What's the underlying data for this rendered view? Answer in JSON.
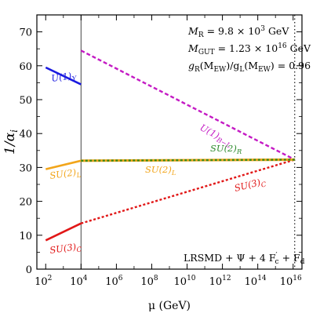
{
  "chart_data": {
    "type": "line",
    "xlabel": "μ (GeV)",
    "ylabel": "1/α",
    "ylabel_sub": "i",
    "x_scale": "log10",
    "xlim_exp": [
      1.5,
      16.5
    ],
    "ylim": [
      0,
      75
    ],
    "x_ticks": [
      {
        "exp": 2,
        "base": "10",
        "sup": "2"
      },
      {
        "exp": 4,
        "base": "10",
        "sup": "4"
      },
      {
        "exp": 6,
        "base": "10",
        "sup": "6"
      },
      {
        "exp": 8,
        "base": "10",
        "sup": "8"
      },
      {
        "exp": 10,
        "base": "10",
        "sup": "10"
      },
      {
        "exp": 12,
        "base": "10",
        "sup": "12"
      },
      {
        "exp": 14,
        "base": "10",
        "sup": "14"
      },
      {
        "exp": 16,
        "base": "10",
        "sup": "16"
      }
    ],
    "y_ticks": [
      0,
      10,
      20,
      30,
      40,
      50,
      60,
      70
    ],
    "vlines": [
      {
        "x_exp": 4,
        "style": "solid",
        "color": "#555555"
      },
      {
        "x_exp": 16.09,
        "style": "dotted",
        "color": "#000000"
      }
    ],
    "series": [
      {
        "name": "U(1)Y",
        "color": "#1a1ae0",
        "dash": "solid",
        "points": [
          [
            2,
            59.5
          ],
          [
            4,
            54.5
          ]
        ],
        "label": {
          "text": "U(1)",
          "sub": "Y",
          "color": "#1a1ae0"
        }
      },
      {
        "name": "SU(2)L",
        "color": "#f2a51a",
        "dash": "solid",
        "points": [
          [
            2,
            29.5
          ],
          [
            4,
            32
          ]
        ],
        "label": {
          "text": "SU(2)",
          "sub": "L",
          "color": "#f2a51a"
        }
      },
      {
        "name": "SU(3)C",
        "color": "#e11717",
        "dash": "solid",
        "points": [
          [
            2,
            8.5
          ],
          [
            4,
            13.5
          ]
        ],
        "label": {
          "text": "SU(3)",
          "sub": "C",
          "color": "#e11717"
        }
      },
      {
        "name": "U(1)B-L",
        "color": "#c41ac4",
        "dash": "dashed",
        "points": [
          [
            4,
            64.5
          ],
          [
            16.09,
            32.3
          ]
        ],
        "label": {
          "text": "U(1)",
          "sub": "B−L",
          "color": "#c41ac4"
        }
      },
      {
        "name": "SU(3)C high",
        "color": "#e11717",
        "dash": "dotted",
        "points": [
          [
            4,
            13.5
          ],
          [
            16.09,
            32.3
          ]
        ],
        "label": {
          "text": "SU(3)",
          "sub": "C",
          "color": "#e11717"
        }
      },
      {
        "name": "SU(2)L high",
        "color": "#f2a51a",
        "dash": "dotted",
        "points": [
          [
            4,
            32
          ],
          [
            16.09,
            32.3
          ]
        ],
        "label": {
          "text": "SU(2)",
          "sub": "L",
          "color": "#f2a51a"
        }
      },
      {
        "name": "SU(2)R",
        "color": "#3a8a1a",
        "dash": "dotted",
        "points": [
          [
            4,
            32
          ],
          [
            16.09,
            32.3
          ]
        ],
        "label": {
          "text": "SU(2)",
          "sub": "R",
          "color": "#2e8b2e"
        }
      }
    ],
    "annotations": [
      "M_R = 9.8 × 10^3 GeV",
      "M_GUT = 1.23 × 10^16 GeV",
      "g_R(M_EW)/g_L(M_EW) = 0.96",
      "LRSMD + Ψ + 4 F′_c + F_d"
    ]
  },
  "annotations": {
    "line1": {
      "main": "M",
      "sub": "R",
      "rest": " = 9.8 × 10",
      "sup": "3",
      "unit": " GeV"
    },
    "line2": {
      "main": "M",
      "sub": "GUT",
      "rest": " = 1.23 × 10",
      "sup": "16",
      "unit": " GeV"
    },
    "line3": {
      "a": "g",
      "a_sub": "R",
      "b": "(M",
      "b_sub": "EW",
      "c": ")/g",
      "c_sub": "L",
      "d": "(M",
      "d_sub": "EW",
      "e": ") = 0.96"
    },
    "model": {
      "a": "LRSMD + Ψ + 4 F",
      "a_sup": "′",
      "a_sub": "c",
      "b": " + F",
      "b_sub": "d"
    }
  }
}
